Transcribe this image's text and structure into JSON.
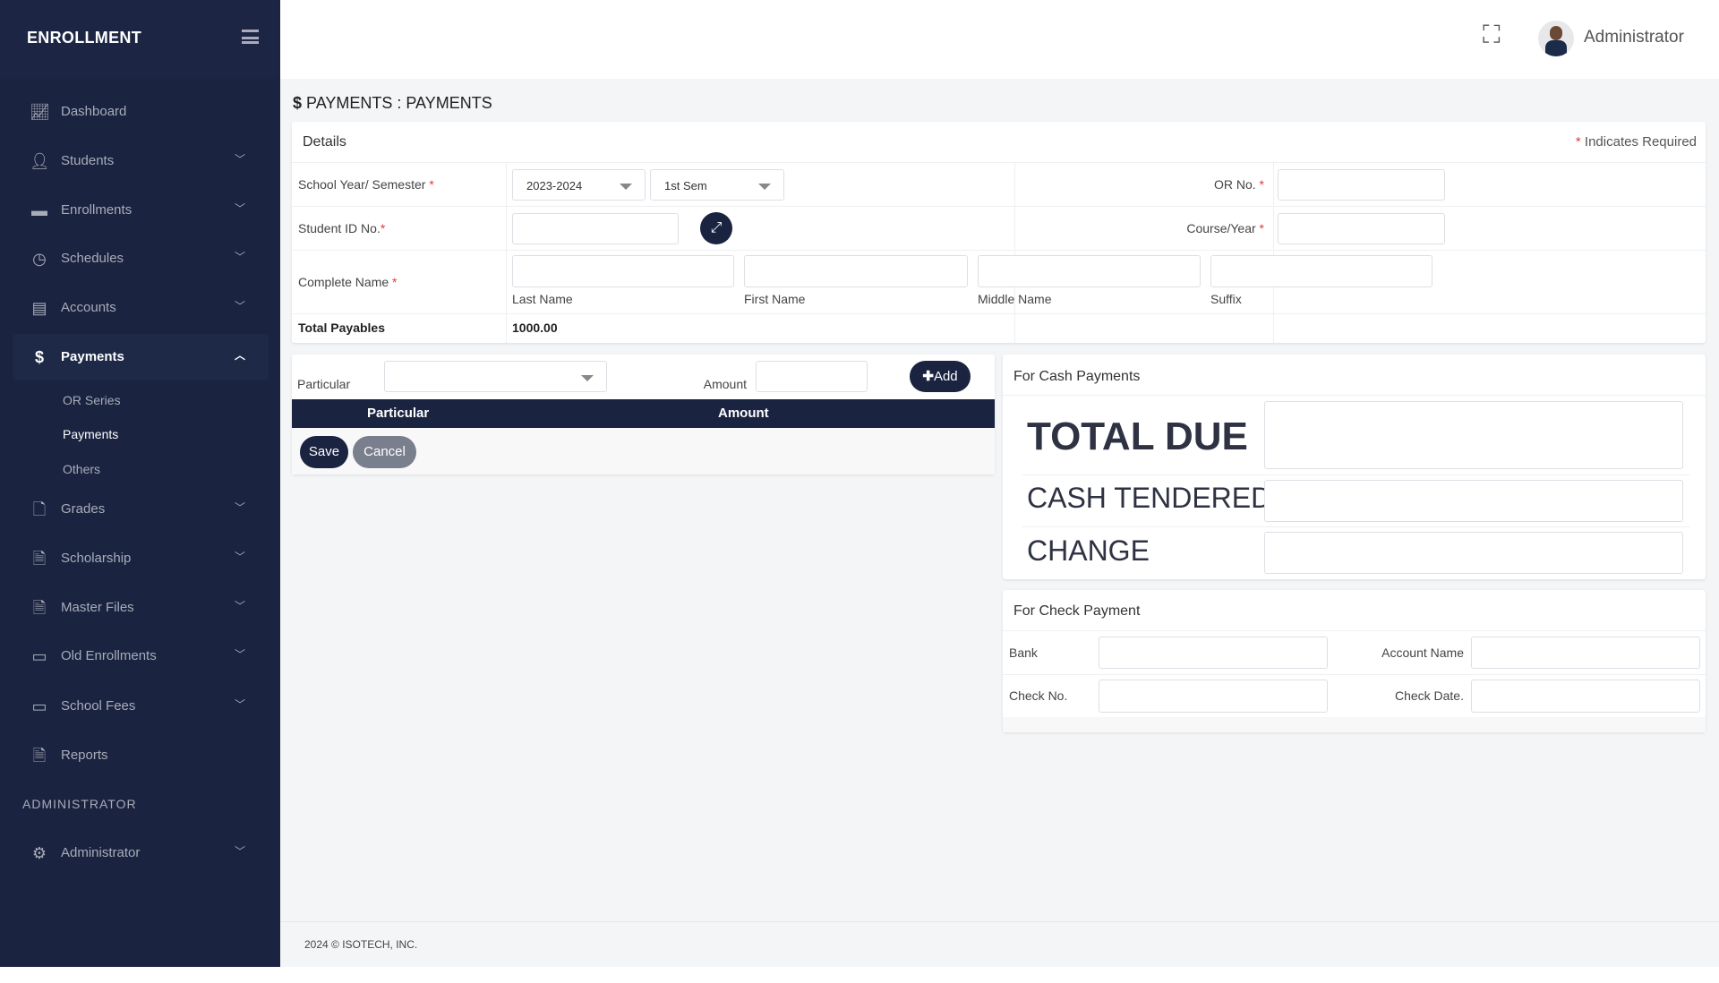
{
  "brand": "ENROLLMENT",
  "sidebar": {
    "items": [
      {
        "label": "Dashboard",
        "icon": "chart-line-icon"
      },
      {
        "label": "Students",
        "icon": "user-icon"
      },
      {
        "label": "Enrollments",
        "icon": "inbox-icon"
      },
      {
        "label": "Schedules",
        "icon": "clock-icon"
      },
      {
        "label": "Accounts",
        "icon": "money-check-icon"
      },
      {
        "label": "Payments",
        "icon": "hand-holding-dollar-icon"
      },
      {
        "label": "Grades",
        "icon": "file-icon"
      },
      {
        "label": "Scholarship",
        "icon": "file-lines-icon"
      },
      {
        "label": "Master Files",
        "icon": "file-image-icon"
      },
      {
        "label": "Old Enrollments",
        "icon": "box-archive-icon"
      },
      {
        "label": "School Fees",
        "icon": "credit-card-icon"
      },
      {
        "label": "Reports",
        "icon": "file-chart-icon"
      }
    ],
    "payments_sub": [
      "OR Series",
      "Payments",
      "Others"
    ],
    "section_heading": "ADMINISTRATOR",
    "admin_item": {
      "label": "Administrator",
      "icon": "gear-icon"
    }
  },
  "header": {
    "user": "Administrator"
  },
  "page": {
    "title": "PAYMENTS : PAYMENTS"
  },
  "details": {
    "title": "Details",
    "required_note": "Indicates Required",
    "school_year_label": "School Year/ Semester",
    "school_year_value": "2023-2024",
    "semester_value": "1st Sem",
    "or_label": "OR No.",
    "student_id_label": "Student ID No.",
    "course_label": "Course/Year",
    "name_label": "Complete Name",
    "last_name": "Last Name",
    "first_name": "First Name",
    "middle_name": "Middle Name",
    "suffix": "Suffix",
    "total_label": "Total Payables",
    "total_value": "1000.00"
  },
  "particulars": {
    "particular_label": "Particular",
    "amount_label": "Amount",
    "add_label": "Add",
    "columns": [
      "Particular",
      "Amount"
    ],
    "save_label": "Save",
    "cancel_label": "Cancel"
  },
  "cash": {
    "title": "For Cash Payments",
    "total_due": "TOTAL DUE",
    "cash_tendered": "CASH TENDERED",
    "change": "CHANGE"
  },
  "check": {
    "title": "For Check Payment",
    "bank": "Bank",
    "account_name": "Account Name",
    "check_no": "Check No.",
    "check_date": "Check Date."
  },
  "footer": "2024 © ISOTECH, INC.",
  "colors": {
    "sidebar": "#1a2340",
    "accent": "#1a2340",
    "required": "#e03b3b",
    "cancel": "#7a7f8e"
  }
}
